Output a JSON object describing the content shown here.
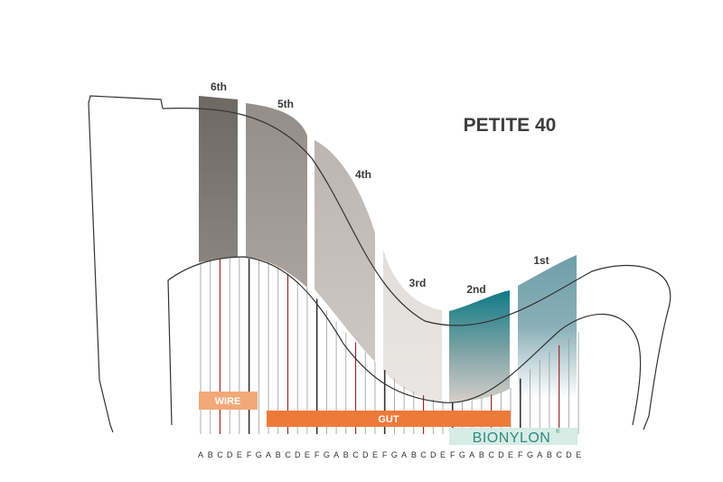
{
  "title": "PETITE 40",
  "octaves": [
    "6th",
    "5th",
    "4th",
    "3rd",
    "2nd",
    "1st"
  ],
  "materials": {
    "wire": "WIRE",
    "gut": "GUT",
    "bionylon": "BIONYLON",
    "bionylon_mark": "®"
  },
  "note_letters": [
    "A",
    "B",
    "C",
    "D",
    "E",
    "F",
    "G",
    "A",
    "B",
    "C",
    "D",
    "E",
    "F",
    "G",
    "A",
    "B",
    "C",
    "D",
    "E",
    "F",
    "G",
    "A",
    "B",
    "C",
    "D",
    "E",
    "F",
    "G",
    "A",
    "B",
    "C",
    "D",
    "E",
    "F",
    "G",
    "A",
    "B",
    "C",
    "D",
    "E"
  ],
  "colors": {
    "c_string": "#a02828",
    "f_string": "#333333",
    "other_string": "#9a9a9a",
    "wire_band": "#f3a878",
    "gut_band": "#ee7a3a",
    "bionylon_band": "#d6ece4",
    "bionylon_text": "#2f8a80"
  }
}
